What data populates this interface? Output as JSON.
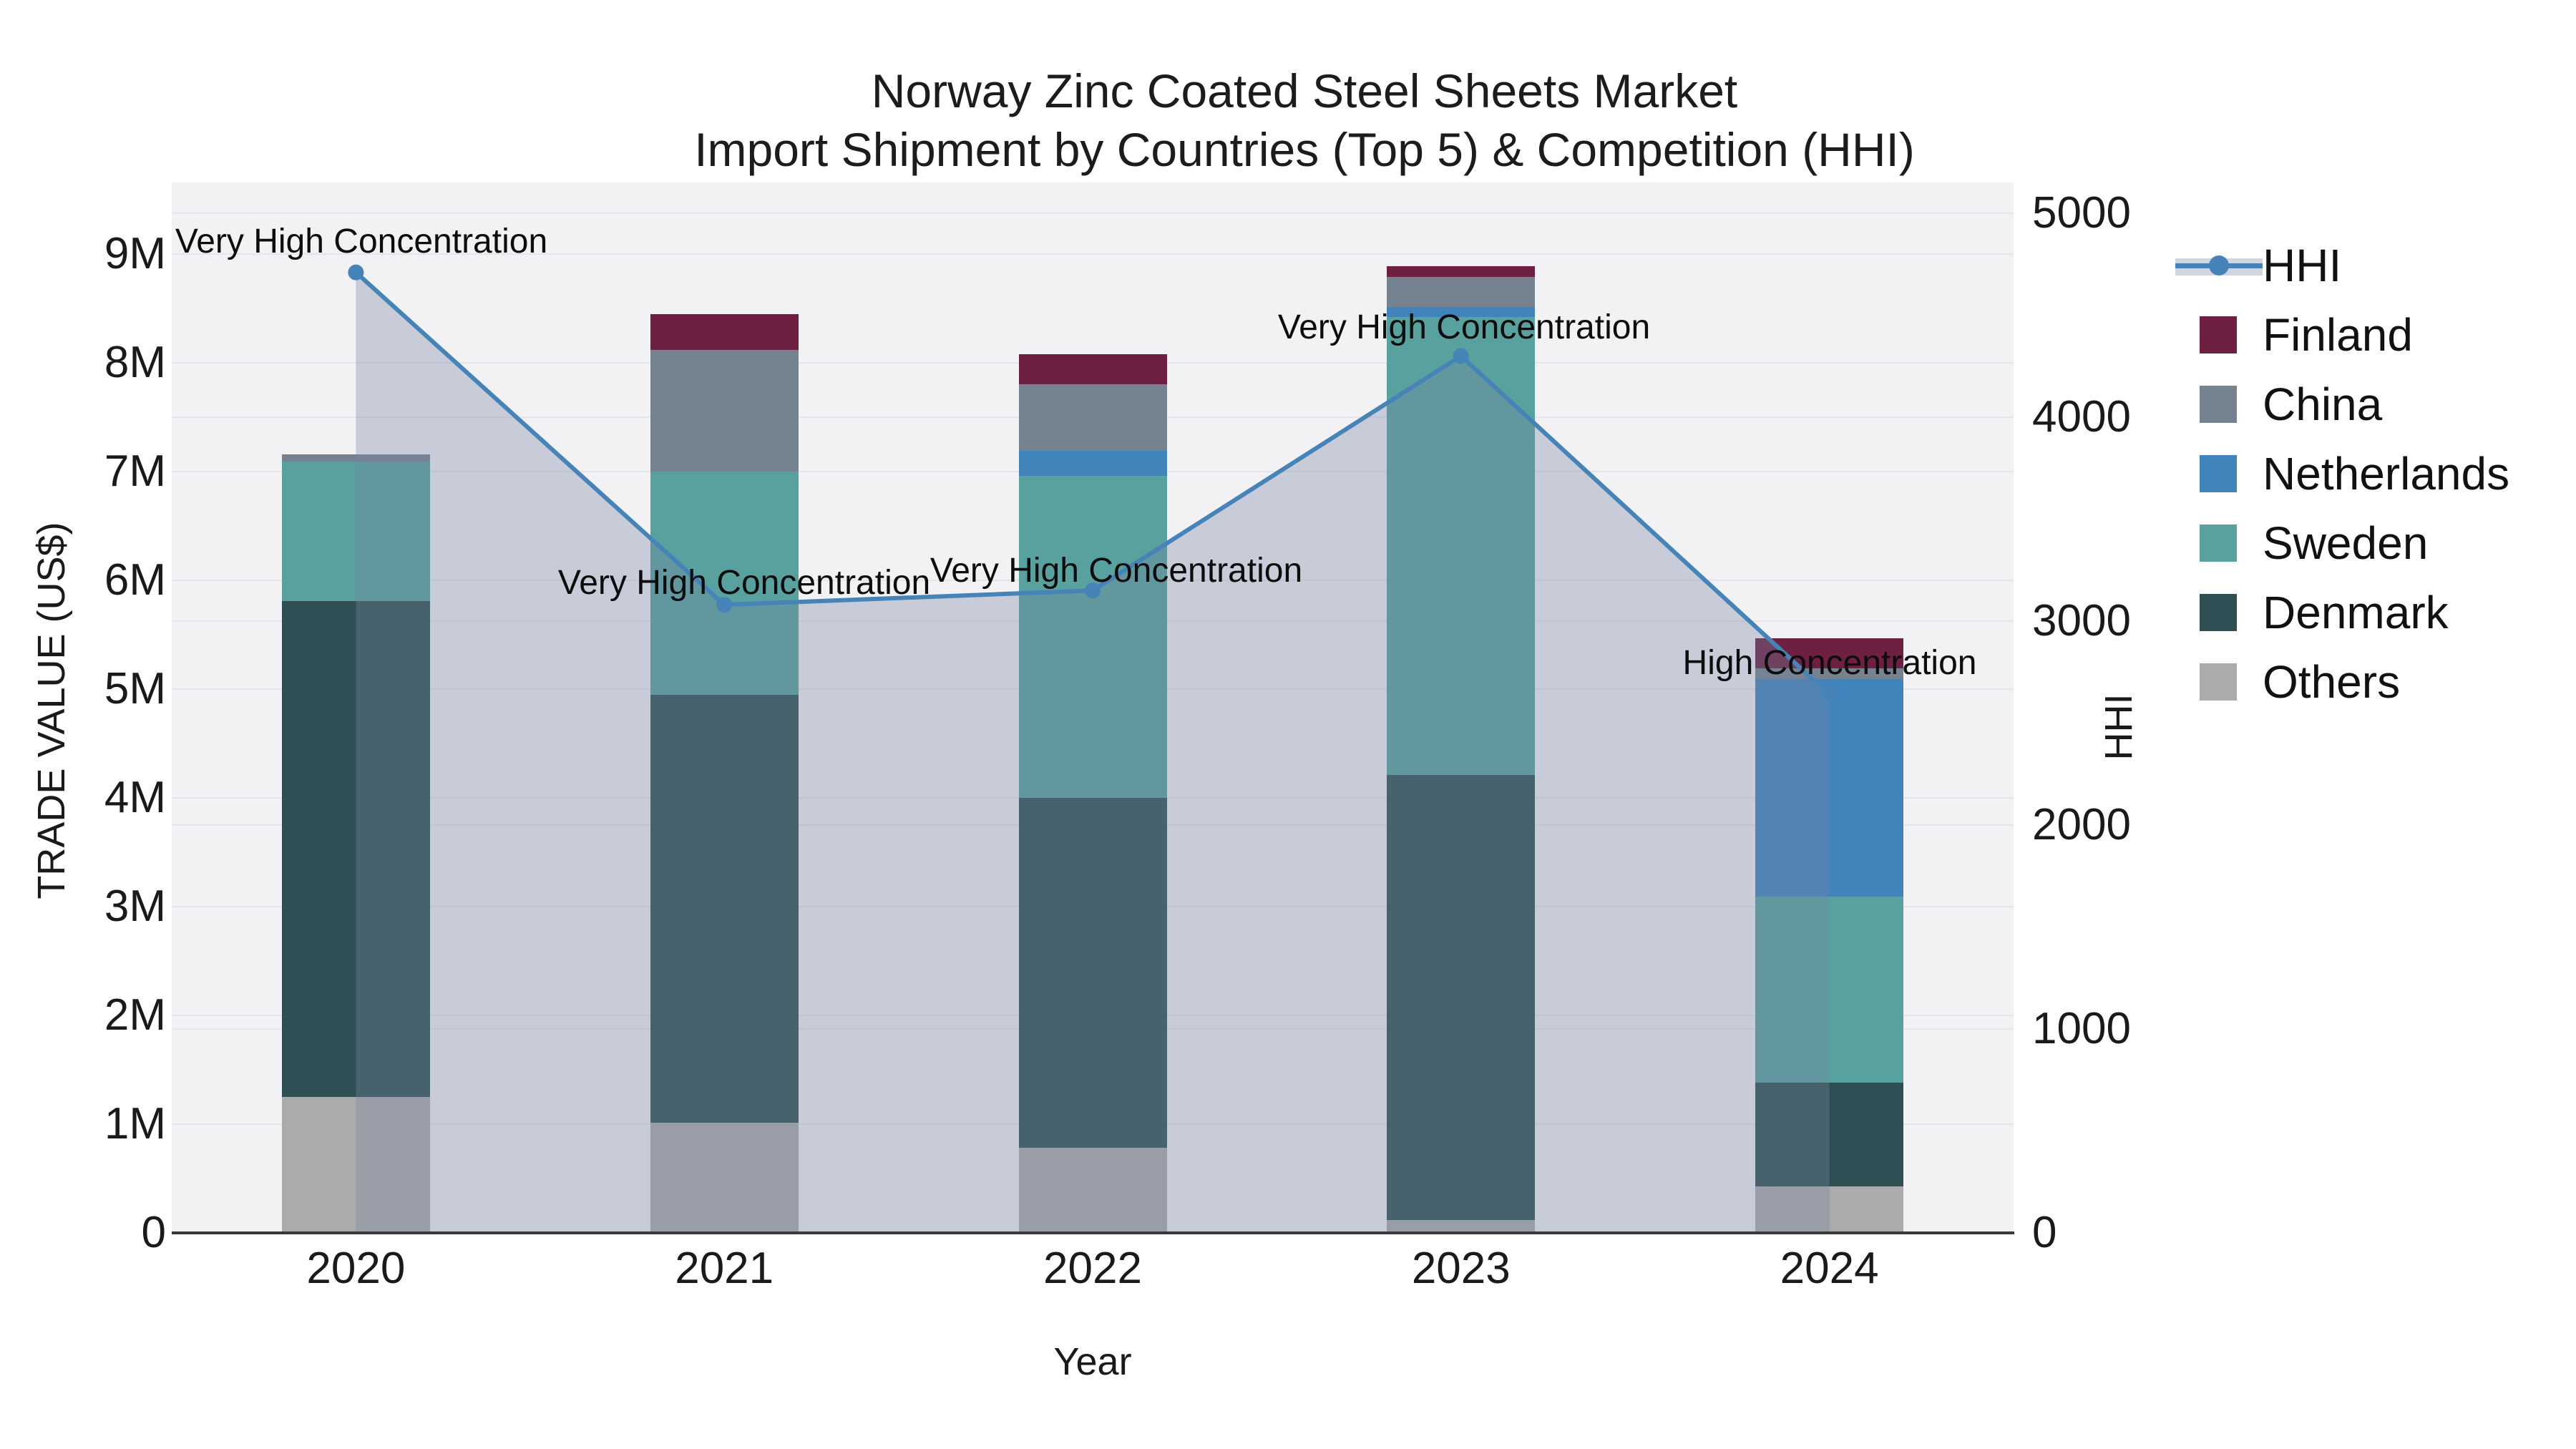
{
  "figure": {
    "title_line1": "Norway Zinc Coated Steel Sheets Market",
    "title_line2": "Import Shipment by Countries (Top 5) & Competition (HHI)",
    "x_axis_title": "Year",
    "y_left_axis_title": "TRADE VALUE (US$)",
    "y_right_axis_title": "HHI"
  },
  "chart_data": {
    "type": "bar",
    "subtype": "stacked bars (trade value, left axis) + HHI line with shaded area (right axis)",
    "categories": [
      "2020",
      "2021",
      "2022",
      "2023",
      "2024"
    ],
    "stack_order_bottom_to_top": [
      "Others",
      "Denmark",
      "Sweden",
      "Netherlands",
      "China",
      "Finland"
    ],
    "series": [
      {
        "name": "Finland",
        "type": "bar",
        "color": "#6e1f42",
        "values_million_usd": [
          0,
          0.33,
          0.28,
          0.1,
          0.28
        ]
      },
      {
        "name": "China",
        "type": "bar",
        "color": "#75828f",
        "values_million_usd": [
          0.07,
          1.12,
          0.61,
          0.28,
          0.1
        ]
      },
      {
        "name": "Netherlands",
        "type": "bar",
        "color": "#4183bb",
        "values_million_usd": [
          0,
          0,
          0.23,
          0.09,
          2.0
        ]
      },
      {
        "name": "Sweden",
        "type": "bar",
        "color": "#58a19e",
        "values_million_usd": [
          1.28,
          2.05,
          2.96,
          4.21,
          1.71
        ]
      },
      {
        "name": "Denmark",
        "type": "bar",
        "color": "#2e4f53",
        "values_million_usd": [
          4.56,
          3.94,
          3.22,
          4.09,
          0.95
        ]
      },
      {
        "name": "Others",
        "type": "bar",
        "color": "#ababab",
        "values_million_usd": [
          1.25,
          1.01,
          0.78,
          0.12,
          0.43
        ]
      },
      {
        "name": "HHI",
        "type": "line",
        "color": "#4683b7",
        "marker": "circle",
        "area_fill_color": "rgba(120,133,160,0.34)",
        "values_hhi": [
          4710,
          3080,
          3150,
          4300,
          2640
        ]
      }
    ],
    "annotations": [
      {
        "text": "Very High Concentration",
        "category": "2020",
        "x": 505,
        "y_center": 338
      },
      {
        "text": "Very High Concentration",
        "category": "2021",
        "x": 1040,
        "y_center": 815
      },
      {
        "text": "Very High Concentration",
        "category": "2022",
        "x": 1560,
        "y_center": 798
      },
      {
        "text": "Very High Concentration",
        "category": "2023",
        "x": 2046,
        "y_center": 458
      },
      {
        "text": "High Concentration",
        "category": "2024",
        "x": 2557,
        "y_center": 927
      }
    ],
    "y_left_axis": {
      "label": "TRADE VALUE (US$)",
      "tick_labels": [
        "0",
        "1M",
        "2M",
        "3M",
        "4M",
        "5M",
        "6M",
        "7M",
        "8M",
        "9M"
      ],
      "tick_values": [
        0,
        1000000,
        2000000,
        3000000,
        4000000,
        5000000,
        6000000,
        7000000,
        8000000,
        9000000
      ]
    },
    "y_right_axis": {
      "label": "HHI",
      "tick_labels": [
        "0",
        "1000",
        "2000",
        "3000",
        "4000",
        "5000"
      ],
      "tick_values": [
        0,
        1000,
        2000,
        3000,
        4000,
        5000
      ]
    },
    "legend": {
      "position": "right",
      "entries": [
        "HHI",
        "Finland",
        "China",
        "Netherlands",
        "Sweden",
        "Denmark",
        "Others"
      ]
    },
    "grid": true,
    "plot_background": "#f2f2f4"
  },
  "colors": {
    "hhi_line": "#4683b7",
    "hhi_area_fill": "rgba(120,133,160,0.34)",
    "finland": "#6e1f42",
    "china": "#75828f",
    "netherlands": "#4183bb",
    "sweden": "#58a19e",
    "denmark": "#2e4f53",
    "others": "#ababab",
    "axis_line": "#3a3a3a",
    "plot_background": "#f2f2f4"
  }
}
